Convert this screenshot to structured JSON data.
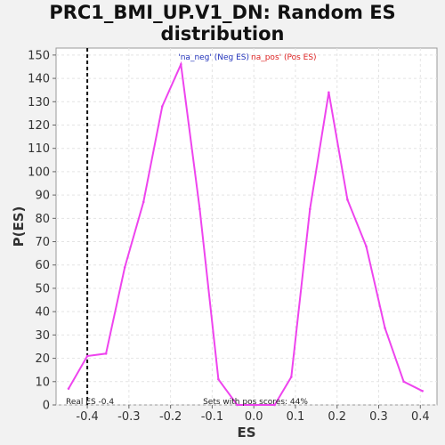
{
  "chart_data": {
    "type": "line",
    "title_line1": "PRC1_BMI_UP.V1_DN: Random ES",
    "title_line2": "distribution",
    "xlabel": "ES",
    "ylabel": "P(ES)",
    "xlim": [
      -0.475,
      0.44
    ],
    "ylim": [
      0,
      153
    ],
    "xticks": [
      -0.4,
      -0.3,
      -0.2,
      -0.1,
      0.0,
      0.1,
      0.2,
      0.3,
      0.4
    ],
    "xtick_labels": [
      "-0.4",
      "-0.3",
      "-0.2",
      "-0.1",
      "0.0",
      "0.1",
      "0.2",
      "0.3",
      "0.4"
    ],
    "yticks": [
      0,
      10,
      20,
      30,
      40,
      50,
      60,
      70,
      80,
      90,
      100,
      110,
      120,
      130,
      140,
      150
    ],
    "grid": true,
    "line_color": "#ee44ee",
    "series": [
      {
        "name": "na_neg",
        "x": [
          -0.445,
          -0.4,
          -0.355,
          -0.31,
          -0.265,
          -0.22,
          -0.175,
          -0.13,
          -0.085,
          -0.04,
          0.005,
          0.05,
          0.09,
          0.135,
          0.18,
          0.225,
          0.27,
          0.315,
          0.36,
          0.405
        ],
        "y": [
          7,
          21,
          22,
          59,
          87,
          128,
          146,
          84,
          11,
          0,
          0,
          0,
          12,
          84,
          134,
          88,
          68,
          33,
          10,
          6
        ]
      }
    ],
    "real_es": -0.4,
    "real_es_label": "Real ES -0.4",
    "pos_scores_label": "Sets with pos scores: 44%",
    "legend": [
      {
        "label": "'na_neg' (Neg ES)",
        "color": "#2233bb"
      },
      {
        "label": "na_pos' (Pos ES)",
        "color": "#dd2222"
      }
    ]
  }
}
